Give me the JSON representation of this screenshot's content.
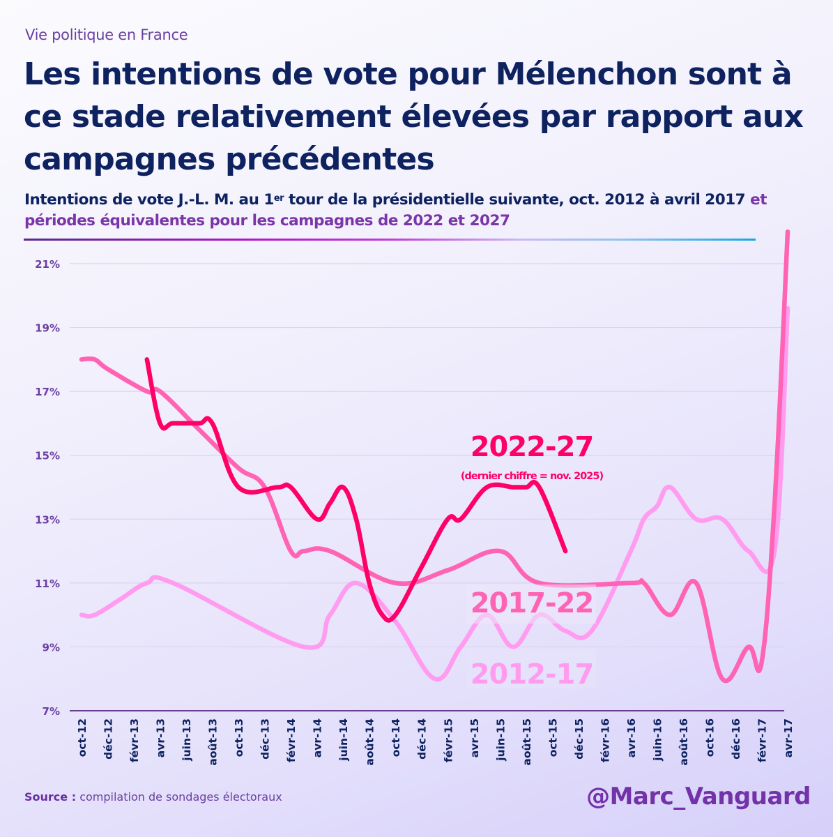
{
  "header": {
    "kicker": "Vie politique en France",
    "title": "Les intentions de vote pour Mélenchon sont à ce stade relativement élevées par rapport aux campagnes précédentes",
    "subtitle_part1": "Intentions de vote J.-L. M. au 1",
    "subtitle_sup": "er",
    "subtitle_part2": " tour de la présidentielle suivante, oct. 2012 à avril 2017 ",
    "subtitle_part3": "et périodes équivalentes pour les campagnes de 2022 et 2027"
  },
  "footer": {
    "source_label": "Source :",
    "source_text": " compilation de sondages électoraux",
    "handle": "@Marc_Vanguard"
  },
  "colors": {
    "s2012": "#ff9cf0",
    "s2017": "#ff63b4",
    "s2022": "#ff0066",
    "axis_text": "#6a3fa0",
    "xtick_text": "#0e2260",
    "grid": "#ddd3ec"
  },
  "chart_data": {
    "type": "line",
    "title": "Intentions de vote J.-L. M. au 1er tour de la présidentielle suivante",
    "xlabel": "",
    "ylabel": "",
    "ylim": [
      7,
      21
    ],
    "yticks": [
      "7%",
      "9%",
      "11%",
      "13%",
      "15%",
      "17%",
      "19%",
      "21%"
    ],
    "ytick_values": [
      7,
      9,
      11,
      13,
      15,
      17,
      19,
      21
    ],
    "x_start": "oct-12",
    "x_months": 54,
    "xticks": [
      "oct-12",
      "déc-12",
      "févr-13",
      "avr-13",
      "juin-13",
      "août-13",
      "oct-13",
      "déc-13",
      "févr-14",
      "avr-14",
      "juin-14",
      "août-14",
      "oct-14",
      "déc-14",
      "févr-15",
      "avr-15",
      "juin-15",
      "août-15",
      "oct-15",
      "déc-15",
      "févr-16",
      "avr-16",
      "juin-16",
      "août-16",
      "oct-16",
      "déc-16",
      "févr-17",
      "avr-17"
    ],
    "grid": true,
    "series": [
      {
        "name": "2012-17",
        "label": "2012-17",
        "points": [
          [
            0,
            10
          ],
          [
            1,
            10
          ],
          [
            3,
            10.5
          ],
          [
            5,
            11
          ],
          [
            7,
            11
          ],
          [
            17,
            9
          ],
          [
            19,
            10
          ],
          [
            21,
            11
          ],
          [
            24,
            9.8
          ],
          [
            27,
            8
          ],
          [
            29,
            9
          ],
          [
            31,
            10
          ],
          [
            33,
            9
          ],
          [
            35,
            10
          ],
          [
            37,
            9.5
          ],
          [
            39,
            9.5
          ],
          [
            42,
            12
          ],
          [
            43,
            13
          ],
          [
            44,
            13.4
          ],
          [
            45,
            14
          ],
          [
            47,
            13
          ],
          [
            49,
            13
          ],
          [
            51,
            12
          ],
          [
            53,
            12
          ],
          [
            54,
            19.6
          ]
        ]
      },
      {
        "name": "2017-22",
        "label": "2017-22",
        "points": [
          [
            0,
            18
          ],
          [
            1,
            18
          ],
          [
            2,
            17.7
          ],
          [
            5,
            17
          ],
          [
            6,
            17
          ],
          [
            9,
            15.8
          ],
          [
            12,
            14.6
          ],
          [
            14,
            14
          ],
          [
            16,
            12
          ],
          [
            17,
            12
          ],
          [
            19,
            12
          ],
          [
            24,
            11
          ],
          [
            28,
            11.4
          ],
          [
            32,
            12
          ],
          [
            35,
            11
          ],
          [
            42,
            11
          ],
          [
            43,
            11
          ],
          [
            45,
            10
          ],
          [
            47,
            11
          ],
          [
            49,
            8
          ],
          [
            51,
            9
          ],
          [
            52,
            8.5
          ],
          [
            53,
            13.5
          ],
          [
            54,
            22
          ]
        ]
      },
      {
        "name": "2022-27",
        "label": "2022-27",
        "note": "(dernier chiffre = nov. 2025)",
        "points": [
          [
            5,
            18
          ],
          [
            6,
            16
          ],
          [
            7,
            16
          ],
          [
            9,
            16
          ],
          [
            10,
            16
          ],
          [
            12,
            14
          ],
          [
            15,
            14
          ],
          [
            16,
            14
          ],
          [
            18,
            13
          ],
          [
            19,
            13.5
          ],
          [
            20,
            14
          ],
          [
            21,
            13
          ],
          [
            22,
            11
          ],
          [
            23,
            10
          ],
          [
            24,
            10
          ],
          [
            26,
            11.5
          ],
          [
            28,
            13
          ],
          [
            29,
            13
          ],
          [
            31,
            14
          ],
          [
            33,
            14
          ],
          [
            34,
            14
          ],
          [
            35,
            14
          ],
          [
            37,
            12
          ]
        ]
      }
    ]
  }
}
